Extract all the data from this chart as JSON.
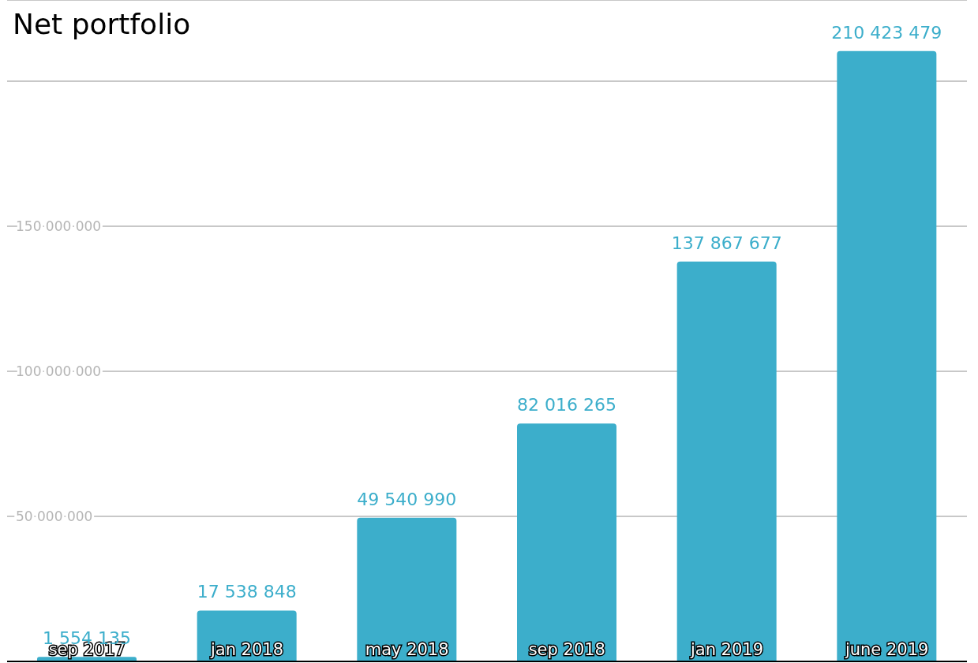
{
  "chart_data": {
    "type": "bar",
    "title": "Net portfolio",
    "categories": [
      "sep 2017",
      "jan 2018",
      "may 2018",
      "sep 2018",
      "jan 2019",
      "june 2019"
    ],
    "values": [
      1554135,
      17538848,
      49540990,
      82016265,
      137867677,
      210423479
    ],
    "color": "#3caecb",
    "ylim": [
      0,
      228000000
    ],
    "yticks": [
      50000000,
      100000000,
      150000000,
      {
        "value": 200000000,
        "label": null
      }
    ],
    "grid": "y",
    "data_labels": true,
    "legend": false
  }
}
